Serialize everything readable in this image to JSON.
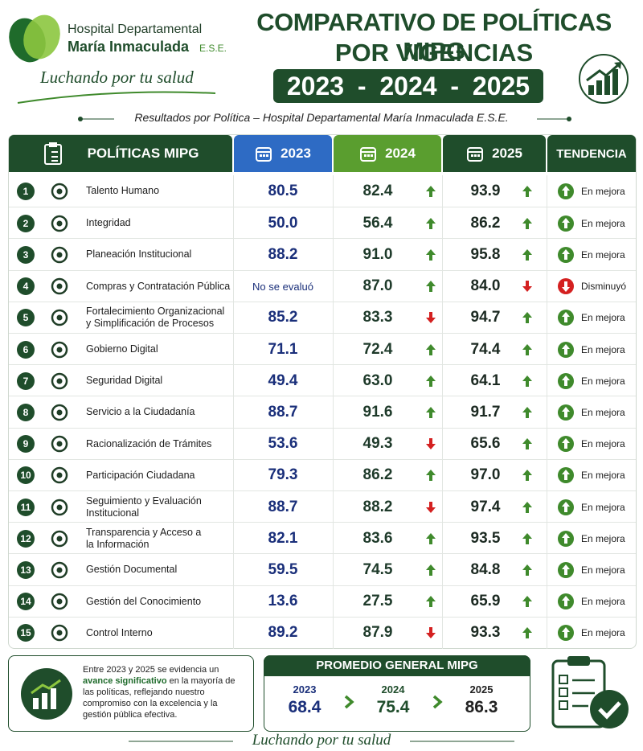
{
  "header": {
    "org_name": "Hospital Departamental",
    "org_name_2": "María Inmaculada",
    "org_suffix": "E.S.E.",
    "slogan": "Luchando por tu salud",
    "title_line_1": "COMPARATIVO DE POLÍTICAS MIPG",
    "title_line_2": "POR VIGENCIAS",
    "years": [
      "2023",
      "2024",
      "2025"
    ],
    "year_separator": "-"
  },
  "subtitle": "Resultados por Política – Hospital Departamental María Inmaculada E.S.E.",
  "table": {
    "columns": [
      "POLÍTICAS MIPG",
      "2023",
      "2024",
      "2025",
      "TENDENCIA"
    ],
    "rows": [
      {
        "number": "1",
        "name": [
          "Talento Humano"
        ],
        "v2023": "80.5",
        "v2024": "82.4",
        "trend_2024": "up",
        "v2025": "93.9",
        "trend_2025": "up",
        "tendency": "En mejora",
        "tendency_direction": "up"
      },
      {
        "number": "2",
        "name": [
          "Integridad"
        ],
        "v2023": "50.0",
        "v2024": "56.4",
        "trend_2024": "up",
        "v2025": "86.2",
        "trend_2025": "up",
        "tendency": "En mejora",
        "tendency_direction": "up"
      },
      {
        "number": "3",
        "name": [
          "Planeación Institucional"
        ],
        "v2023": "88.2",
        "v2024": "91.0",
        "trend_2024": "up",
        "v2025": "95.8",
        "trend_2025": "up",
        "tendency": "En mejora",
        "tendency_direction": "up"
      },
      {
        "number": "4",
        "name": [
          "Compras y Contratación Pública"
        ],
        "v2023": "No se evaluó",
        "v2024": "87.0",
        "trend_2024": "up",
        "v2025": "84.0",
        "trend_2025": "down",
        "tendency": "Disminuyó",
        "tendency_direction": "down"
      },
      {
        "number": "5",
        "name": [
          "Fortalecimiento Organizacional",
          "y Simplificación de Procesos"
        ],
        "v2023": "85.2",
        "v2024": "83.3",
        "trend_2024": "down",
        "v2025": "94.7",
        "trend_2025": "up",
        "tendency": "En mejora",
        "tendency_direction": "up"
      },
      {
        "number": "6",
        "name": [
          "Gobierno Digital"
        ],
        "v2023": "71.1",
        "v2024": "72.4",
        "trend_2024": "up",
        "v2025": "74.4",
        "trend_2025": "up",
        "tendency": "En mejora",
        "tendency_direction": "up"
      },
      {
        "number": "7",
        "name": [
          "Seguridad Digital"
        ],
        "v2023": "49.4",
        "v2024": "63.0",
        "trend_2024": "up",
        "v2025": "64.1",
        "trend_2025": "up",
        "tendency": "En mejora",
        "tendency_direction": "up"
      },
      {
        "number": "8",
        "name": [
          "Servicio a la Ciudadanía"
        ],
        "v2023": "88.7",
        "v2024": "91.6",
        "trend_2024": "up",
        "v2025": "91.7",
        "trend_2025": "up",
        "tendency": "En mejora",
        "tendency_direction": "up"
      },
      {
        "number": "9",
        "name": [
          "Racionalización de Trámites"
        ],
        "v2023": "53.6",
        "v2024": "49.3",
        "trend_2024": "down",
        "v2025": "65.6",
        "trend_2025": "up",
        "tendency": "En mejora",
        "tendency_direction": "up"
      },
      {
        "number": "10",
        "name": [
          "Participación Ciudadana"
        ],
        "v2023": "79.3",
        "v2024": "86.2",
        "trend_2024": "up",
        "v2025": "97.0",
        "trend_2025": "up",
        "tendency": "En mejora",
        "tendency_direction": "up"
      },
      {
        "number": "11",
        "name": [
          "Seguimiento y Evaluación",
          "Institucional"
        ],
        "v2023": "88.7",
        "v2024": "88.2",
        "trend_2024": "down",
        "v2025": "97.4",
        "trend_2025": "up",
        "tendency": "En mejora",
        "tendency_direction": "up"
      },
      {
        "number": "12",
        "name": [
          "Transparencia y Acceso a",
          "la Información"
        ],
        "v2023": "82.1",
        "v2024": "83.6",
        "trend_2024": "up",
        "v2025": "93.5",
        "trend_2025": "up",
        "tendency": "En mejora",
        "tendency_direction": "up"
      },
      {
        "number": "13",
        "name": [
          "Gestión Documental"
        ],
        "v2023": "59.5",
        "v2024": "74.5",
        "trend_2024": "up",
        "v2025": "84.8",
        "trend_2025": "up",
        "tendency": "En mejora",
        "tendency_direction": "up"
      },
      {
        "number": "14",
        "name": [
          "Gestión del Conocimiento"
        ],
        "v2023": "13.6",
        "v2024": "27.5",
        "trend_2024": "up",
        "v2025": "65.9",
        "trend_2025": "up",
        "tendency": "En mejora",
        "tendency_direction": "up"
      },
      {
        "number": "15",
        "name": [
          "Control Interno"
        ],
        "v2023": "89.2",
        "v2024": "87.9",
        "trend_2024": "down",
        "v2025": "93.3",
        "trend_2025": "up",
        "tendency": "En mejora",
        "tendency_direction": "up"
      }
    ]
  },
  "summary": {
    "text_1": "Entre 2023 y 2025 se evidencia un",
    "highlight": "avance significativo",
    "text_2": "en la mayoría de las políticas, reflejando nuestro compromiso con la excelencia y la gestión pública efectiva."
  },
  "average": {
    "title": "PROMEDIO GENERAL MIPG",
    "items": [
      {
        "year": "2023",
        "value": "68.4"
      },
      {
        "year": "2024",
        "value": "75.4"
      },
      {
        "year": "2025",
        "value": "86.3"
      }
    ]
  },
  "footer": {
    "slogan": "Luchando por tu salud"
  }
}
